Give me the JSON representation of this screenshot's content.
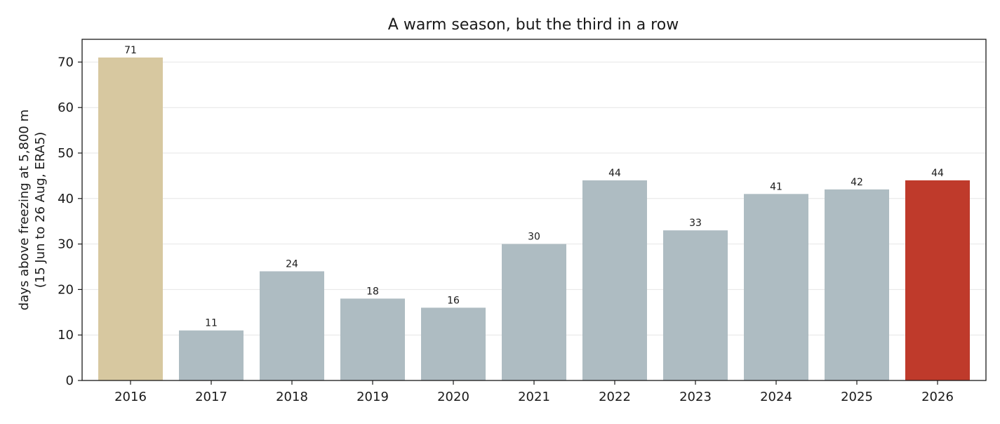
{
  "chart_data": {
    "type": "bar",
    "title": "A warm season, but the third in a row",
    "xlabel": "",
    "ylabel_lines": [
      "days above freezing at 5,800 m",
      "(15 Jun to 26 Aug, ERA5)"
    ],
    "categories": [
      "2016",
      "2017",
      "2018",
      "2019",
      "2020",
      "2021",
      "2022",
      "2023",
      "2024",
      "2025",
      "2026"
    ],
    "values": [
      71,
      11,
      24,
      18,
      16,
      30,
      44,
      33,
      41,
      42,
      44
    ],
    "data_labels": [
      "71",
      "11",
      "24",
      "18",
      "16",
      "30",
      "44",
      "33",
      "41",
      "42",
      "44"
    ],
    "ylim": [
      0,
      75
    ],
    "yticks": [
      0,
      10,
      20,
      30,
      40,
      50,
      60,
      70
    ],
    "grid": "horizontal",
    "legend": "none",
    "colors": {
      "2016": "#d7c8a0",
      "default": "#aebcc2",
      "2026": "#bf3a2b"
    }
  }
}
